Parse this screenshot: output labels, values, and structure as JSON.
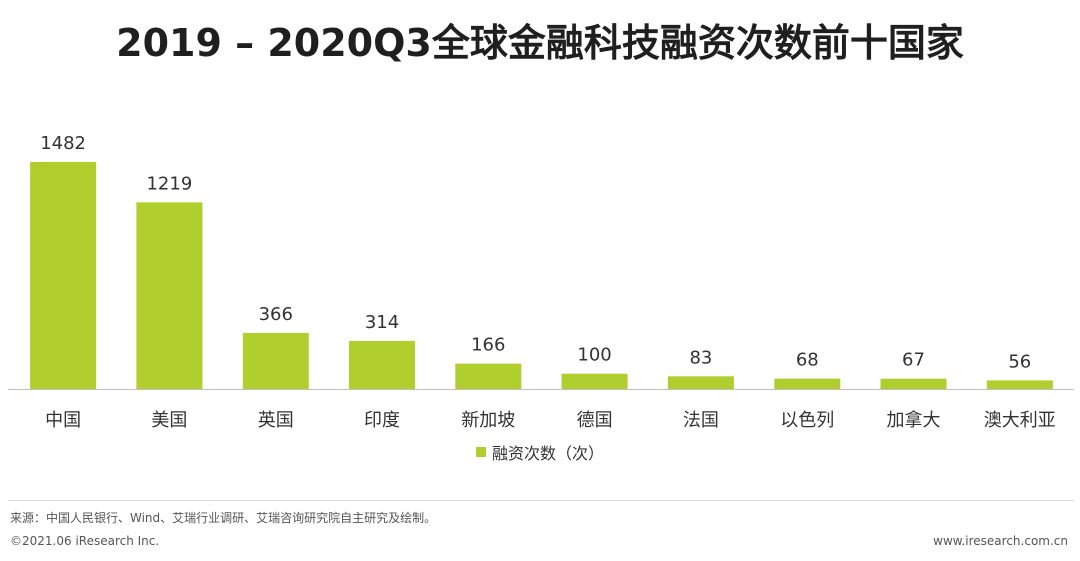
{
  "title": "2019 – 2020Q3全球金融科技融资次数前十国家",
  "chart_data": {
    "type": "bar",
    "title": "2019 – 2020Q3全球金融科技融资次数前十国家",
    "categories": [
      "中国",
      "美国",
      "英国",
      "印度",
      "新加坡",
      "德国",
      "法国",
      "以色列",
      "加拿大",
      "澳大利亚"
    ],
    "series": [
      {
        "name": "融资次数（次）",
        "values": [
          1482,
          1219,
          366,
          314,
          166,
          100,
          83,
          68,
          67,
          56
        ]
      }
    ],
    "xlabel": "",
    "ylabel": "",
    "ylim": [
      0,
      1482
    ],
    "grid": false,
    "legend_position": "bottom-center",
    "bar_color": "#b0cf2e"
  },
  "footer": {
    "source": "来源：中国人民银行、Wind、艾瑞行业调研、艾瑞咨询研究院自主研究及绘制。",
    "copyright": "©2021.06 iResearch Inc.",
    "website": "www.iresearch.com.cn"
  }
}
